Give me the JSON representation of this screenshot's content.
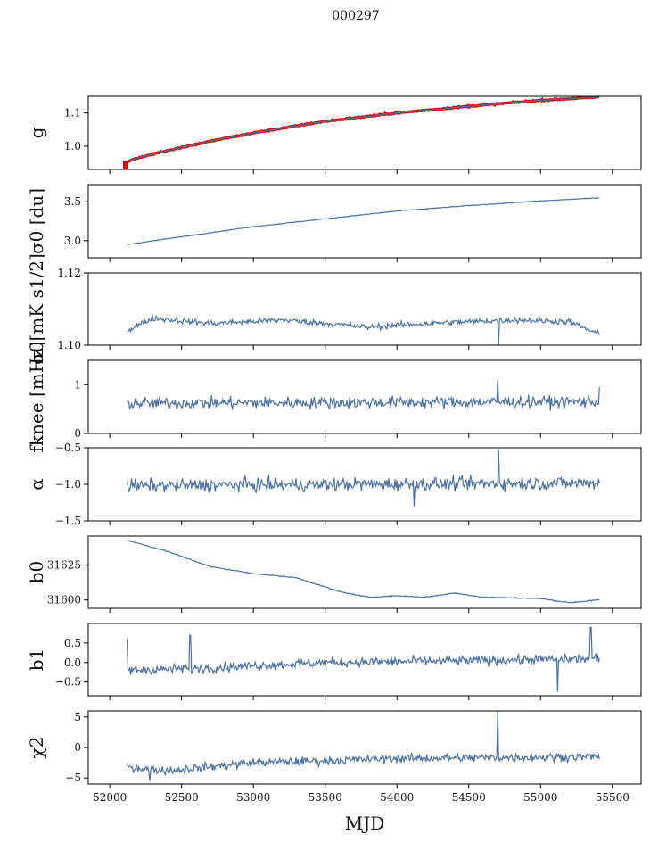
{
  "chart_data": {
    "type": "line",
    "title": "000297",
    "xlabel": "MJD",
    "xlim": [
      51850,
      55700
    ],
    "xticks": [
      52000,
      52500,
      53000,
      53500,
      54000,
      54500,
      55000,
      55500
    ],
    "x_start": 52120,
    "x_end": 55410,
    "line_color": "#4c72a5",
    "gain_highlight_color": "#e00000",
    "panels": [
      {
        "id": "g",
        "ylabel_text": "g",
        "ylim": [
          0.93,
          1.15
        ],
        "yticks": [
          1.0,
          1.1
        ],
        "ytick_labels": [
          "1.0",
          "1.1"
        ],
        "trend": [
          [
            52120,
            0.955
          ],
          [
            52300,
            0.977
          ],
          [
            52700,
            1.015
          ],
          [
            53000,
            1.04
          ],
          [
            53500,
            1.075
          ],
          [
            54000,
            1.1
          ],
          [
            54500,
            1.12
          ],
          [
            55000,
            1.138
          ],
          [
            55410,
            1.148
          ]
        ],
        "noise": 0.002,
        "has_highlight": true
      },
      {
        "id": "sigma0_du",
        "ylabel_text": "σ0 [du]",
        "ylim": [
          2.78,
          3.72
        ],
        "yticks": [
          3.0,
          3.5
        ],
        "ytick_labels": [
          "3.0",
          "3.5"
        ],
        "trend": [
          [
            52120,
            2.95
          ],
          [
            52500,
            3.05
          ],
          [
            53000,
            3.18
          ],
          [
            53500,
            3.28
          ],
          [
            54000,
            3.38
          ],
          [
            54500,
            3.45
          ],
          [
            55000,
            3.51
          ],
          [
            55410,
            3.55
          ]
        ],
        "noise": 0.005
      },
      {
        "id": "sigma0_mk",
        "ylabel_text": "σ0[mK s1/2]",
        "ylim": [
          1.1,
          1.12
        ],
        "yticks": [
          1.1,
          1.12
        ],
        "ytick_labels": [
          "1.10",
          "1.12"
        ],
        "trend": [
          [
            52120,
            1.104
          ],
          [
            52300,
            1.1075
          ],
          [
            52700,
            1.106
          ],
          [
            53200,
            1.107
          ],
          [
            53800,
            1.105
          ],
          [
            54200,
            1.106
          ],
          [
            54800,
            1.107
          ],
          [
            55200,
            1.1065
          ],
          [
            55410,
            1.103
          ]
        ],
        "noise": 0.0008,
        "spikes": [
          [
            54710,
            1.1
          ]
        ]
      },
      {
        "id": "fknee",
        "ylabel_text": "fknee [mHz]",
        "ylim": [
          0,
          1.5
        ],
        "yticks": [
          0,
          1
        ],
        "ytick_labels": [
          "0",
          "1"
        ],
        "trend": [
          [
            52120,
            0.62
          ],
          [
            55410,
            0.65
          ]
        ],
        "noise": 0.12,
        "spikes": [
          [
            54700,
            1.1
          ],
          [
            55410,
            0.95
          ]
        ]
      },
      {
        "id": "alpha",
        "ylabel_text": "α",
        "ylim": [
          -1.5,
          -0.5
        ],
        "yticks": [
          -1.5,
          -1.0,
          -0.5
        ],
        "ytick_labels": [
          "−1.5",
          "−1.0",
          "−0.5"
        ],
        "trend": [
          [
            52120,
            -1.02
          ],
          [
            55410,
            -0.98
          ]
        ],
        "noise": 0.09,
        "spikes": [
          [
            54710,
            -0.52
          ],
          [
            54120,
            -1.3
          ]
        ]
      },
      {
        "id": "b0",
        "ylabel_text": "b0",
        "ylim": [
          31594,
          31646
        ],
        "yticks": [
          31600,
          31625
        ],
        "ytick_labels": [
          "31600",
          "31625"
        ],
        "trend": [
          [
            52120,
            31643
          ],
          [
            52400,
            31635
          ],
          [
            52700,
            31624
          ],
          [
            53000,
            31619
          ],
          [
            53300,
            31616
          ],
          [
            53600,
            31606
          ],
          [
            53800,
            31602
          ],
          [
            54000,
            31603
          ],
          [
            54200,
            31602
          ],
          [
            54400,
            31605
          ],
          [
            54600,
            31602
          ],
          [
            55000,
            31601
          ],
          [
            55200,
            31598
          ],
          [
            55410,
            31600
          ]
        ],
        "noise": 0.4
      },
      {
        "id": "b1",
        "ylabel_text": "b1",
        "ylim": [
          -0.85,
          1.0
        ],
        "yticks": [
          -0.5,
          0.0,
          0.5
        ],
        "ytick_labels": [
          "−0.5",
          "0.0",
          "0.5"
        ],
        "trend": [
          [
            52120,
            -0.2
          ],
          [
            52600,
            -0.15
          ],
          [
            53500,
            0.0
          ],
          [
            54500,
            0.05
          ],
          [
            55410,
            0.1
          ]
        ],
        "noise": 0.12,
        "spikes": [
          [
            52120,
            0.6
          ],
          [
            52560,
            0.7
          ],
          [
            55120,
            -0.75
          ],
          [
            55350,
            0.9
          ]
        ]
      },
      {
        "id": "chi2",
        "ylabel_text": "χ2",
        "ylim": [
          -6,
          6
        ],
        "yticks": [
          -5,
          0,
          5
        ],
        "ytick_labels": [
          "−5",
          "0",
          "5"
        ],
        "trend": [
          [
            52120,
            -3.2
          ],
          [
            52400,
            -3.8
          ],
          [
            53000,
            -2.5
          ],
          [
            54000,
            -1.8
          ],
          [
            55410,
            -1.5
          ]
        ],
        "noise": 0.7,
        "spikes": [
          [
            54700,
            6
          ],
          [
            52280,
            -5.5
          ]
        ]
      }
    ]
  }
}
